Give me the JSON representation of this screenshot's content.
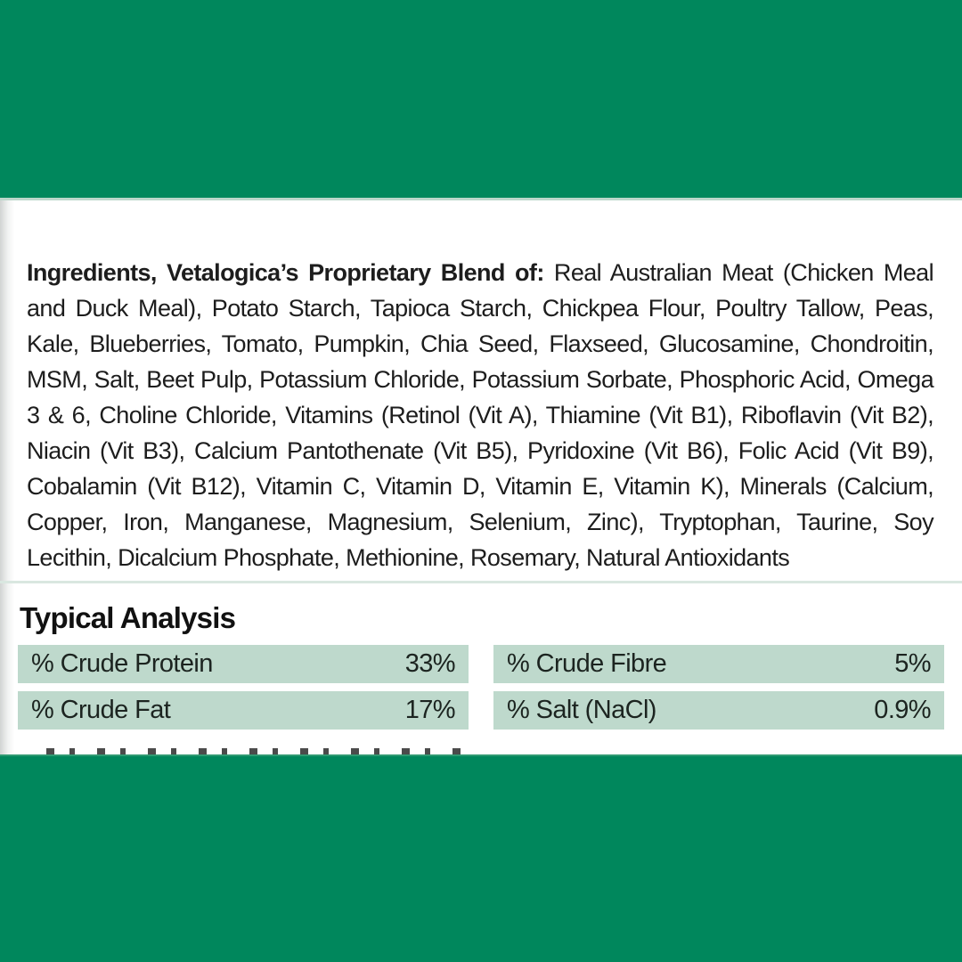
{
  "colors": {
    "brand_green": "#00875c",
    "analysis_row_green": "#bed9cc",
    "text": "#1d1d1d"
  },
  "ingredients": {
    "lead_bold": "Ingredients, Vetalogica’s Proprietary Blend of:",
    "body": " Real Australian Meat (Chicken Meal and Duck Meal), Potato Starch, Tapioca Starch, Chickpea Flour, Poultry Tallow, Peas, Kale, Blueberries, Tomato, Pumpkin, Chia Seed, Flaxseed, Glucosamine, Chondroitin, MSM, Salt, Beet Pulp, Potassium Chloride, Potassium Sorbate, Phosphoric Acid, Omega 3 & 6, Choline Chloride, Vitamins (Retinol (Vit A), Thiamine (Vit B1), Riboflavin (Vit B2), Niacin (Vit B3), Calcium Pantothenate (Vit B5), Pyridoxine (Vit B6), Folic Acid (Vit B9), Cobalamin (Vit B12), Vitamin C, Vitamin D, Vitamin E, Vitamin K), Minerals (Calcium, Copper, Iron, Manganese, Magnesium, Selenium, Zinc), Tryptophan, Taurine, Soy Lecithin, Dicalcium Phosphate, Methionine, Rosemary, Natural Antioxidants"
  },
  "analysis": {
    "title": "Typical Analysis",
    "left": [
      {
        "name": "% Crude Protein",
        "value": "33%"
      },
      {
        "name": "% Crude Fat",
        "value": "17%"
      }
    ],
    "right": [
      {
        "name": "% Crude Fibre",
        "value": "5%"
      },
      {
        "name": "% Salt (NaCl)",
        "value": "0.9%"
      }
    ]
  }
}
